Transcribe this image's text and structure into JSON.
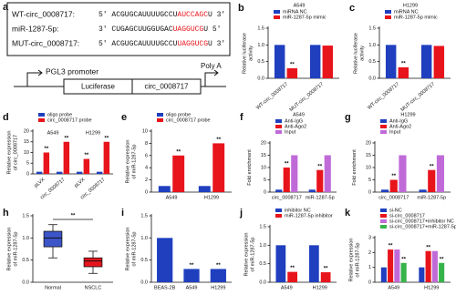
{
  "panel_a": {
    "label": "a",
    "highlight_color": "#e8141b",
    "sequences": [
      {
        "name": "WT-circ_0008717:",
        "parts": [
          "5' ACGUGCAUUUUGCCU",
          "AUCCAGC",
          "U 3'"
        ]
      },
      {
        "name": "miR-1287-5p:",
        "parts": [
          "3' CUGAGCUUGGUGAC",
          "UAGGUCG",
          "U 5'"
        ]
      },
      {
        "name": "MUT-circ_0008717:",
        "parts": [
          "5' ACGUGCAUUUUGCCU",
          "UAGGUCG",
          "U 3'"
        ]
      }
    ],
    "diagram": {
      "promoter": "PGL3 promoter",
      "boxes": [
        "Luciferase",
        "circ_0008717"
      ],
      "tail": "Poly A"
    }
  },
  "chart_data": [
    {
      "type": "bar",
      "label": "b",
      "title": "A549",
      "ylabel": [
        "Relative luciferase",
        "activity"
      ],
      "categories": [
        "WT-circ_0008717",
        "MUT-circ_0008717"
      ],
      "series": [
        {
          "name": "miRNA NC",
          "color": "#1f3fbf",
          "values": [
            1.0,
            1.0
          ],
          "significance": [
            null,
            null
          ]
        },
        {
          "name": "miR-1287-5p mimic",
          "color": "#e8141b",
          "values": [
            0.3,
            0.98
          ],
          "significance": [
            "**",
            null
          ]
        }
      ],
      "ylim": [
        0,
        1.5
      ],
      "yticks": [
        {
          "value": 0,
          "label": "0.0"
        },
        0.5,
        {
          "value": 1,
          "label": "1.0"
        },
        1.5
      ],
      "rotate_labels": true
    },
    {
      "type": "bar",
      "label": "c",
      "title": "H1299",
      "ylabel": [
        "Relative luciferase",
        "activity"
      ],
      "categories": [
        "WT-circ_0008717",
        "MUT-circ_0008717"
      ],
      "series": [
        {
          "name": "miRNA NC",
          "color": "#1f3fbf",
          "values": [
            1.0,
            1.0
          ],
          "significance": [
            null,
            null
          ]
        },
        {
          "name": "miR-1287-5p mimic",
          "color": "#e8141b",
          "values": [
            0.33,
            0.97
          ],
          "significance": [
            "**",
            null
          ]
        }
      ],
      "ylim": [
        0,
        1.5
      ],
      "yticks": [
        {
          "value": 0,
          "label": "0.0"
        },
        0.5,
        {
          "value": 1,
          "label": "1.0"
        },
        1.5
      ],
      "rotate_labels": true
    },
    {
      "type": "bar",
      "label": "d",
      "ylabel": [
        "Relative expression",
        "of circ_0008717"
      ],
      "categories": [
        "pLVX",
        "circ_0008717",
        "pLVX",
        "circ_0008717"
      ],
      "groups": [
        "A549",
        "H1299"
      ],
      "series": [
        {
          "name": "oligo probe",
          "color": "#1f3fbf",
          "values": [
            1,
            1,
            1,
            1
          ],
          "significance": [
            null,
            null,
            null,
            null
          ]
        },
        {
          "name": "circ_0008717 probe",
          "color": "#e8141b",
          "values": [
            10,
            15,
            7,
            15
          ],
          "significance": [
            "**",
            "**",
            "**",
            "**"
          ]
        }
      ],
      "ylim": [
        0,
        20
      ],
      "yticks": [
        0,
        5,
        10,
        15,
        20
      ],
      "rotate_labels": true
    },
    {
      "type": "bar",
      "label": "e",
      "ylabel": [
        "Relative expression",
        "of miR-1287-5p"
      ],
      "categories": [
        "A549",
        "H1299"
      ],
      "series": [
        {
          "name": "oligo probe",
          "color": "#1f3fbf",
          "values": [
            1,
            1
          ],
          "significance": [
            null,
            null
          ]
        },
        {
          "name": "circ_0008717 probe",
          "color": "#e8141b",
          "values": [
            6,
            8
          ],
          "significance": [
            "**",
            "**"
          ]
        }
      ],
      "ylim": [
        0,
        10
      ],
      "yticks": [
        0,
        2,
        4,
        6,
        8,
        10
      ],
      "rotate_labels": false
    },
    {
      "type": "bar",
      "label": "f",
      "title": "A549",
      "ylabel": [
        "Fold enrichment"
      ],
      "categories": [
        "circ_0008717",
        "miR-1287-5p"
      ],
      "series": [
        {
          "name": "Anti-IgG",
          "color": "#1f3fbf",
          "values": [
            1,
            1
          ],
          "significance": [
            null,
            null
          ]
        },
        {
          "name": "Anti-Ago2",
          "color": "#e8141b",
          "values": [
            10,
            9
          ],
          "significance": [
            "**",
            "**"
          ]
        },
        {
          "name": "Input",
          "color": "#c06ad8",
          "values": [
            15,
            15
          ],
          "significance": [
            null,
            null
          ]
        }
      ],
      "ylim": [
        0,
        20
      ],
      "yticks": [
        0,
        5,
        10,
        15,
        20
      ],
      "rotate_labels": false
    },
    {
      "type": "bar",
      "label": "g",
      "title": "H1299",
      "ylabel": [
        "Fold enrichment"
      ],
      "categories": [
        "circ_0008717",
        "miR-1287-5p"
      ],
      "series": [
        {
          "name": "Anti-IgG",
          "color": "#1f3fbf",
          "values": [
            1,
            1
          ],
          "significance": [
            null,
            null
          ]
        },
        {
          "name": "Anti-Ago2",
          "color": "#e8141b",
          "values": [
            5,
            9
          ],
          "significance": [
            "**",
            "**"
          ]
        },
        {
          "name": "Input",
          "color": "#c06ad8",
          "values": [
            15,
            15
          ],
          "significance": [
            null,
            null
          ]
        }
      ],
      "ylim": [
        0,
        20
      ],
      "yticks": [
        0,
        5,
        10,
        15,
        20
      ],
      "rotate_labels": false
    },
    {
      "type": "box",
      "label": "h",
      "ylabel": [
        "Relative expression",
        "of miR-1287-5p"
      ],
      "categories": [
        "Normal",
        "NSCLC"
      ],
      "colors": [
        "#3c55c8",
        "#e8141b"
      ],
      "boxes": [
        {
          "min": 0.55,
          "q1": 0.8,
          "median": 1.0,
          "q3": 1.15,
          "max": 1.3
        },
        {
          "min": 0.2,
          "q1": 0.35,
          "median": 0.48,
          "q3": 0.55,
          "max": 0.7
        }
      ],
      "significance": "**",
      "ylim": [
        0,
        1.5
      ],
      "yticks": [
        {
          "value": 0,
          "label": "0.0"
        },
        0.5,
        {
          "value": 1,
          "label": "1.0"
        },
        1.5
      ],
      "rotate_labels": false
    },
    {
      "type": "bar",
      "label": "i",
      "ylabel": [
        "Relative expression",
        "of miR-1287-5p"
      ],
      "categories": [
        "BEAS-2B",
        "A549",
        "H1299"
      ],
      "series": [
        {
          "color": "#1f3fbf",
          "values": [
            1.0,
            0.3,
            0.3
          ],
          "significance": [
            null,
            "**",
            "**"
          ]
        }
      ],
      "ylim": [
        0,
        1.5
      ],
      "yticks": [
        {
          "value": 0,
          "label": "0.0"
        },
        0.5,
        {
          "value": 1,
          "label": "1.0"
        },
        1.5
      ],
      "rotate_labels": false
    },
    {
      "type": "bar",
      "label": "j",
      "ylabel": [
        "Relative expression",
        "of miR-1287-5p"
      ],
      "categories": [
        "A549",
        "H1299"
      ],
      "series": [
        {
          "name": "inhibitor NC",
          "color": "#1f3fbf",
          "values": [
            1.0,
            1.0
          ],
          "significance": [
            null,
            null
          ]
        },
        {
          "name": "miR-1287-5p inhibitor",
          "color": "#e8141b",
          "values": [
            0.28,
            0.27
          ],
          "significance": [
            "**",
            "**"
          ]
        }
      ],
      "ylim": [
        0,
        1.5
      ],
      "yticks": [
        {
          "value": 0,
          "label": "0.0"
        },
        0.5,
        {
          "value": 1,
          "label": "1.0"
        },
        1.5
      ],
      "rotate_labels": false
    },
    {
      "type": "bar",
      "label": "k",
      "ylabel": [
        "Relative expression",
        "of miR-1287-5p"
      ],
      "categories": [
        "A549",
        "H1299"
      ],
      "series": [
        {
          "name": "si-NC",
          "color": "#1f3fbf",
          "values": [
            1.0,
            1.0
          ],
          "significance": [
            null,
            null
          ]
        },
        {
          "name": "si-circ_0008717",
          "color": "#e8141b",
          "values": [
            2.2,
            2.1
          ],
          "significance": [
            "**",
            "**"
          ]
        },
        {
          "name": "si-circ_0008717+inhibitor NC",
          "color": "#c06ad8",
          "values": [
            2.2,
            2.1
          ],
          "significance": [
            null,
            null
          ]
        },
        {
          "name": "si-circ_0008717+miR-1287-5p inhibitor",
          "color": "#36b34a",
          "values": [
            1.3,
            1.3
          ],
          "significance": [
            "**",
            "**"
          ]
        }
      ],
      "ylim": [
        0,
        3
      ],
      "yticks": [
        0,
        1,
        2,
        3
      ],
      "rotate_labels": false
    }
  ]
}
